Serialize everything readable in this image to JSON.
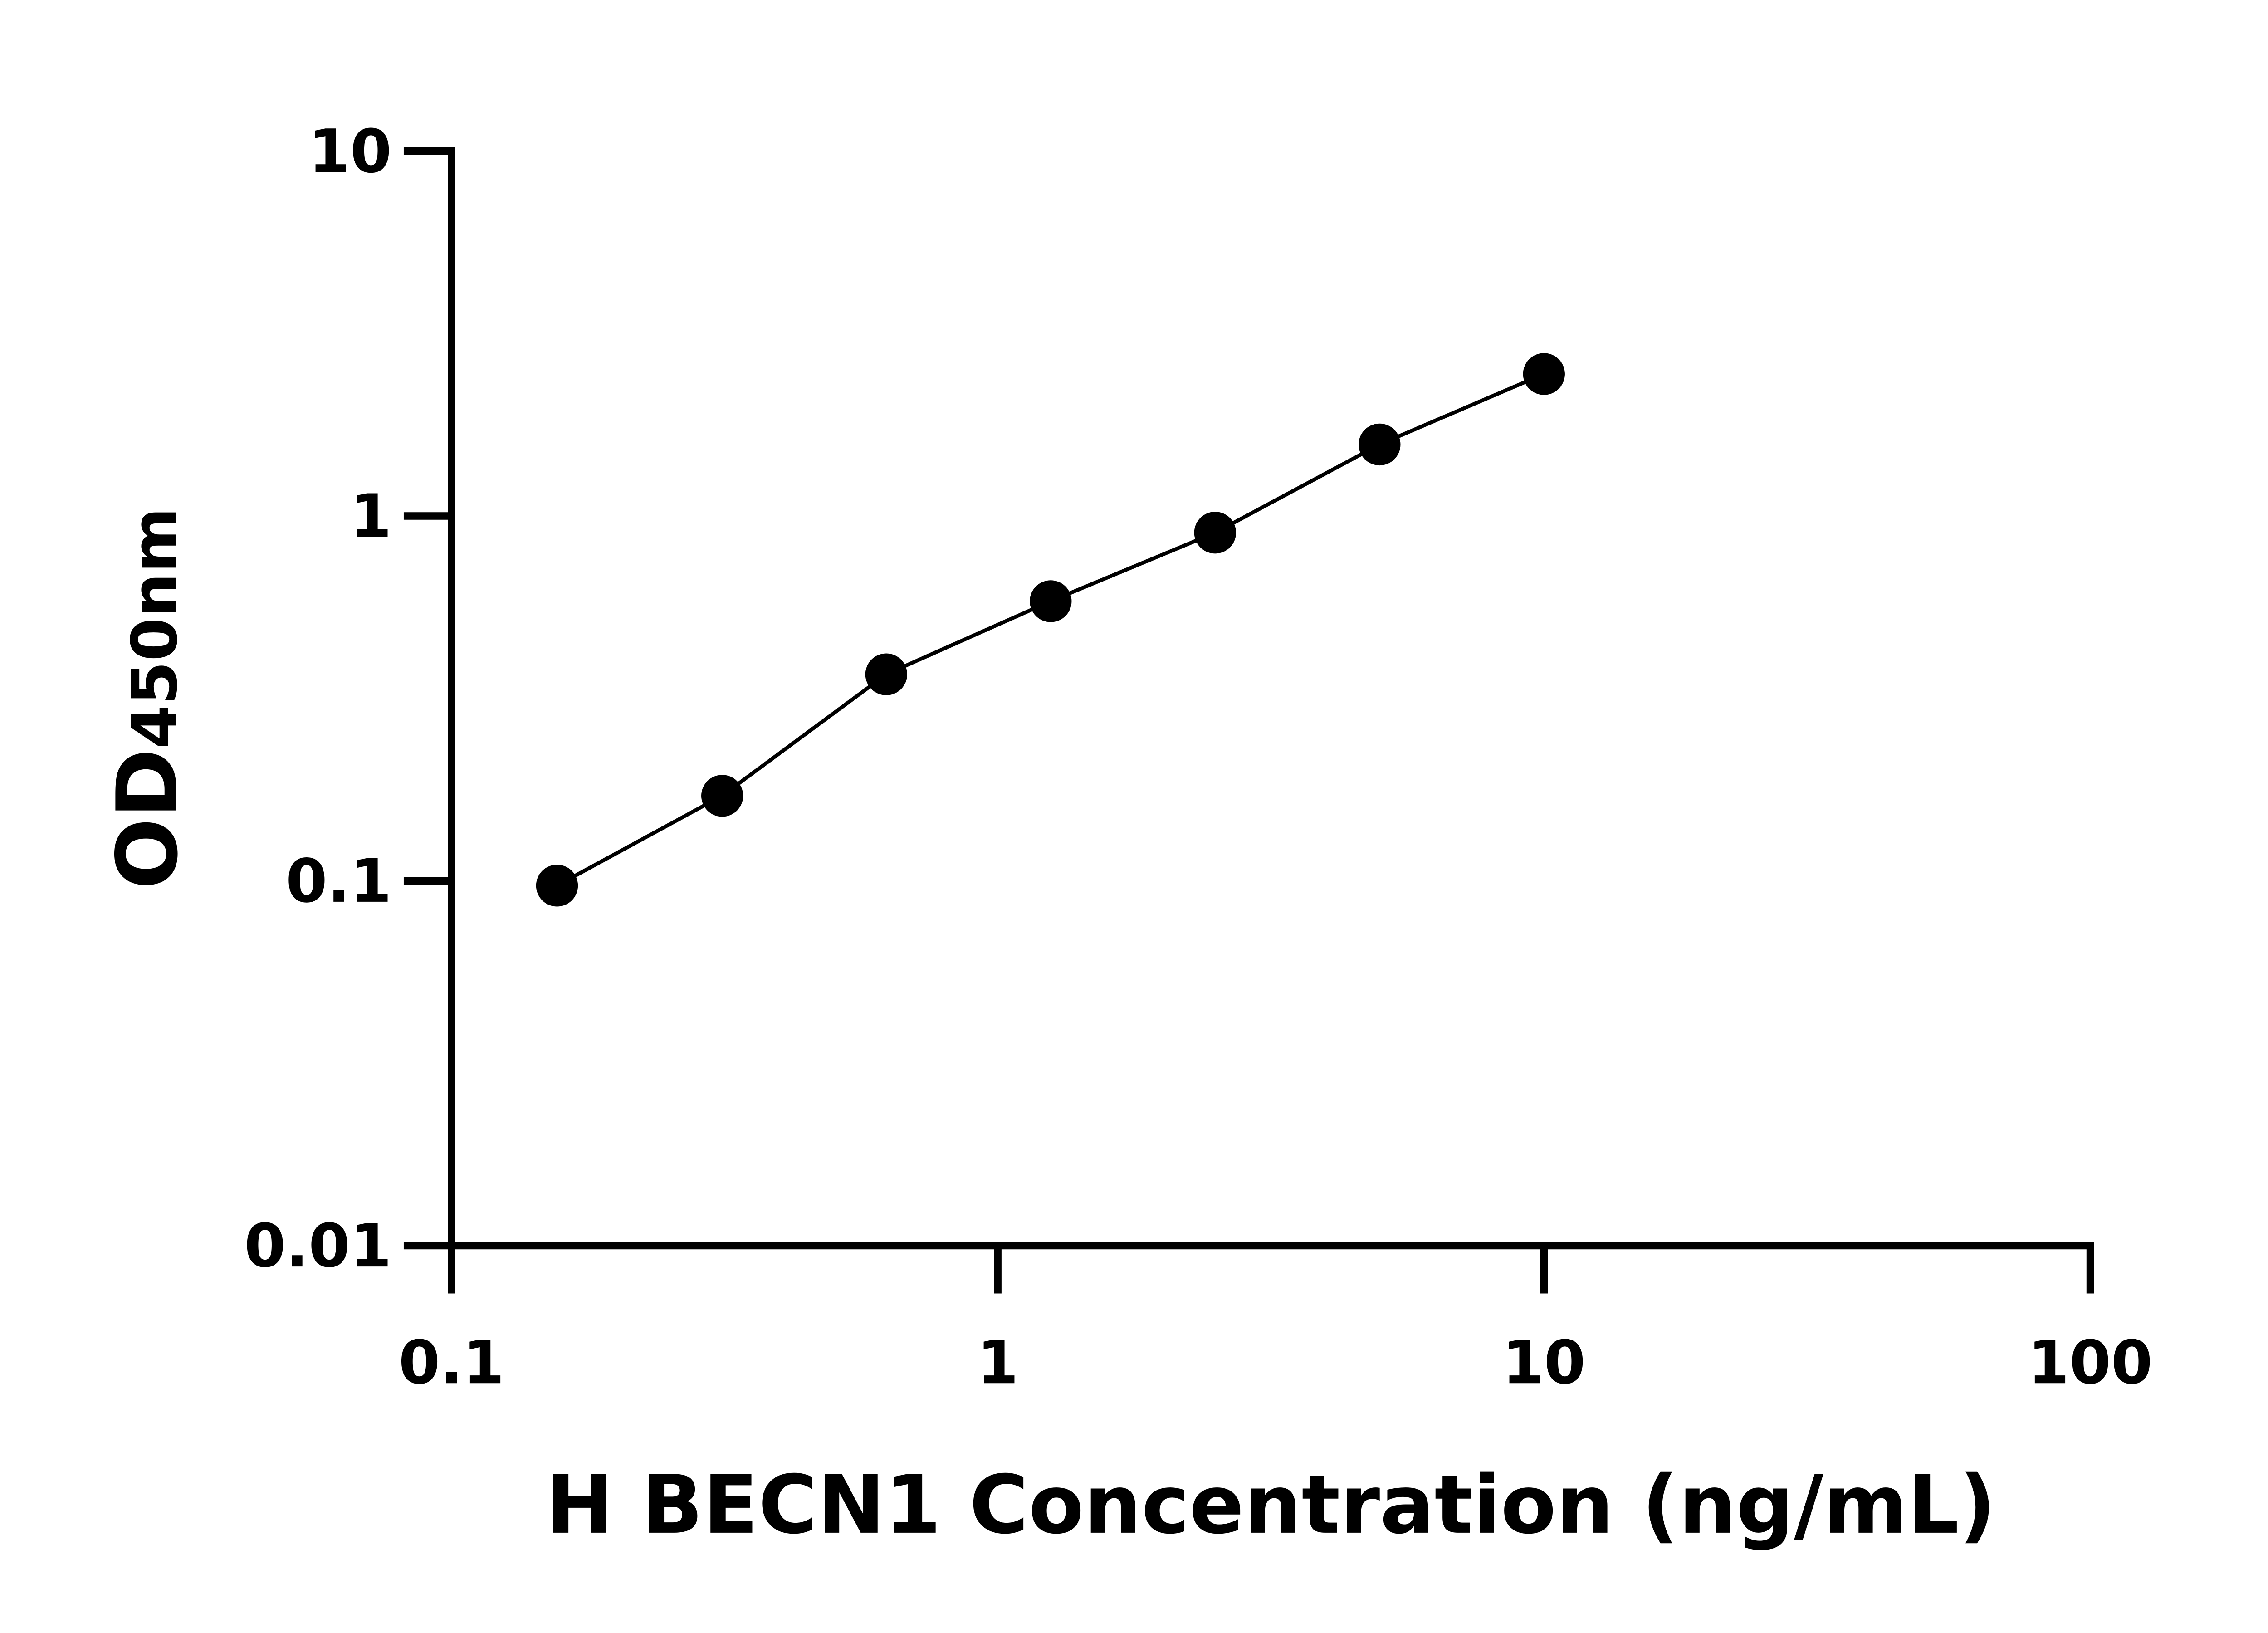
{
  "chart_data": {
    "type": "scatter",
    "title": "",
    "xlabel": "H BECN1 Concentration (ng/mL)",
    "ylabel": {
      "main": "OD",
      "sub": "450nm"
    },
    "x_scale": "log",
    "y_scale": "log",
    "xlim": [
      0.1,
      100
    ],
    "ylim": [
      0.01,
      10
    ],
    "x_ticks": [
      "0.1",
      "1",
      "10",
      "100"
    ],
    "y_ticks": [
      "0.01",
      "0.1",
      "1",
      "10"
    ],
    "grid": false,
    "legend": "none",
    "marker_color": "#000000",
    "fit_line": true,
    "points": [
      {
        "x": 0.156,
        "y": 0.097
      },
      {
        "x": 0.313,
        "y": 0.171
      },
      {
        "x": 0.625,
        "y": 0.368
      },
      {
        "x": 1.25,
        "y": 0.584
      },
      {
        "x": 2.5,
        "y": 0.9
      },
      {
        "x": 5.0,
        "y": 1.57
      },
      {
        "x": 10,
        "y": 2.45
      }
    ]
  }
}
